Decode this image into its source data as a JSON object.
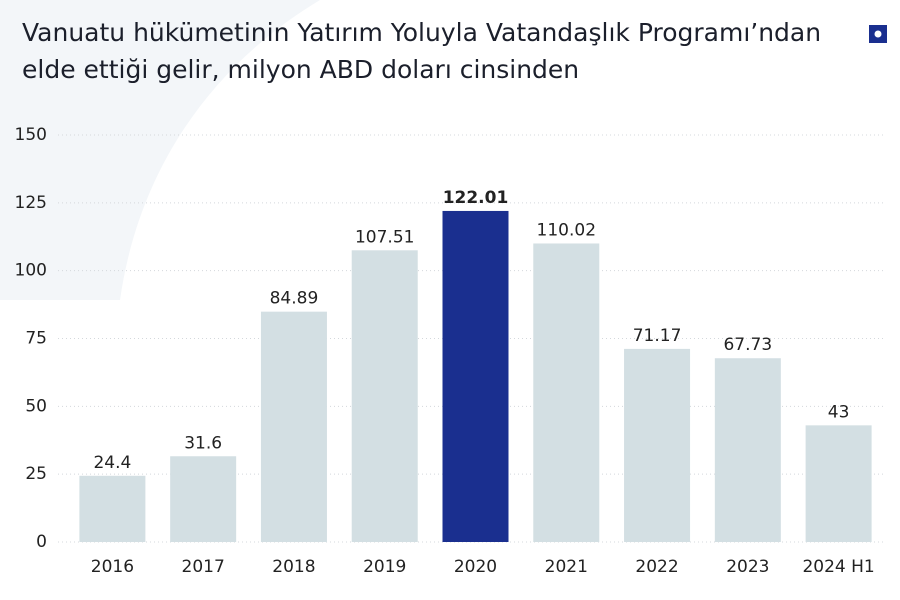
{
  "chart_data": {
    "type": "bar",
    "title": "Vanuatu hükümetinin Yatırım Yoluyla Vatandaşlık Programı’ndan elde ettiği gelir, milyon ABD doları cinsinden",
    "categories": [
      "2016",
      "2017",
      "2018",
      "2019",
      "2020",
      "2021",
      "2022",
      "2023",
      "2024 H1"
    ],
    "values": [
      24.4,
      31.6,
      84.89,
      107.51,
      122.01,
      110.02,
      71.17,
      67.73,
      43
    ],
    "colors": [
      "#d3dfe3",
      "#d3dfe3",
      "#d3dfe3",
      "#d3dfe3",
      "#1a2f8f",
      "#d3dfe3",
      "#d3dfe3",
      "#d3dfe3",
      "#d3dfe3"
    ],
    "ylim": [
      0,
      150
    ],
    "yticks": [
      0,
      25,
      50,
      75,
      100,
      125,
      150
    ],
    "grid": true
  }
}
